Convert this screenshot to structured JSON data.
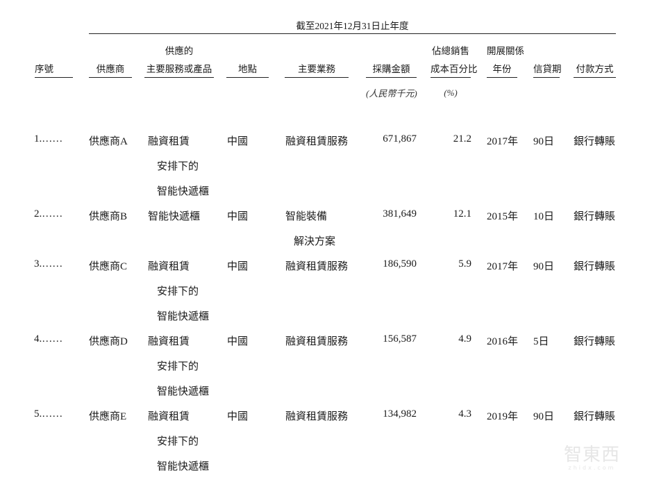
{
  "period_header": "截至2021年12月31日止年度",
  "columns": {
    "no": [
      "序號"
    ],
    "supplier": [
      "供應商"
    ],
    "product": [
      "供應的",
      "主要服務或產品"
    ],
    "location": [
      "地點"
    ],
    "business": [
      "主要業務"
    ],
    "amount": [
      "採購金額"
    ],
    "pct": [
      "佔總銷售",
      "成本百分比"
    ],
    "since": [
      "開展關係",
      "年份"
    ],
    "credit": [
      "信貸期"
    ],
    "payment": [
      "付款方式"
    ]
  },
  "units": {
    "amount": "(人民幣千元)",
    "pct": "(%)"
  },
  "rows": [
    {
      "no": "1.……",
      "supplier": "供應商A",
      "product": [
        "融資租賃",
        "安排下的",
        "智能快遞櫃"
      ],
      "location": "中國",
      "business": [
        "融資租賃服務"
      ],
      "amount": "671,867",
      "pct": "21.2",
      "since": "2017年",
      "credit": "90日",
      "payment": "銀行轉賬"
    },
    {
      "no": "2.……",
      "supplier": "供應商B",
      "product": [
        "智能快遞櫃"
      ],
      "location": "中國",
      "business": [
        "智能裝備",
        "解決方案"
      ],
      "amount": "381,649",
      "pct": "12.1",
      "since": "2015年",
      "credit": "10日",
      "payment": "銀行轉賬"
    },
    {
      "no": "3.……",
      "supplier": "供應商C",
      "product": [
        "融資租賃",
        "安排下的",
        "智能快遞櫃"
      ],
      "location": "中國",
      "business": [
        "融資租賃服務"
      ],
      "amount": "186,590",
      "pct": "5.9",
      "since": "2017年",
      "credit": "90日",
      "payment": "銀行轉賬"
    },
    {
      "no": "4.……",
      "supplier": "供應商D",
      "product": [
        "融資租賃",
        "安排下的",
        "智能快遞櫃"
      ],
      "location": "中國",
      "business": [
        "融資租賃服務"
      ],
      "amount": "156,587",
      "pct": "4.9",
      "since": "2016年",
      "credit": "5日",
      "payment": "銀行轉賬"
    },
    {
      "no": "5.……",
      "supplier": "供應商E",
      "product": [
        "融資租賃",
        "安排下的",
        "智能快遞櫃"
      ],
      "location": "中國",
      "business": [
        "融資租賃服務"
      ],
      "amount": "134,982",
      "pct": "4.3",
      "since": "2019年",
      "credit": "90日",
      "payment": "銀行轉賬"
    }
  ],
  "watermark": {
    "main": "智東西",
    "sub": "zhidx.com"
  }
}
